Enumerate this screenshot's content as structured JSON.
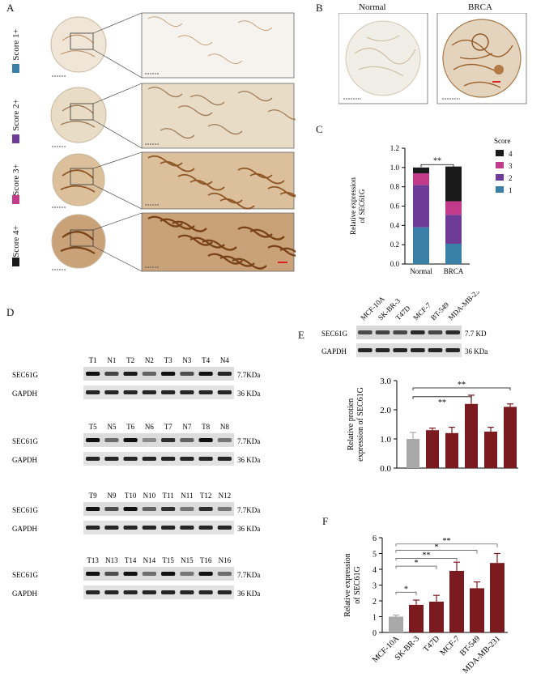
{
  "panelA": {
    "label": "A",
    "scores": [
      {
        "text": "Score 1+",
        "color": "#3a7fa6"
      },
      {
        "text": "Score 2+",
        "color": "#6e3b97"
      },
      {
        "text": "Score 3+",
        "color": "#c23a8a"
      },
      {
        "text": "Score 4+",
        "color": "#1a1a1a"
      }
    ]
  },
  "panelB": {
    "label": "B",
    "normal": "Normal",
    "brca": "BRCA"
  },
  "panelC": {
    "label": "C",
    "sig": "**",
    "legend_title": "Score",
    "ylabel": [
      "Relative expression",
      "of SEC61G"
    ],
    "chart_data": {
      "type": "bar",
      "stacked": true,
      "categories": [
        "Normal",
        "BRCA"
      ],
      "series": [
        {
          "name": "1",
          "color": "#3a7fa6",
          "values": [
            0.38,
            0.21
          ]
        },
        {
          "name": "2",
          "color": "#6e3b97",
          "values": [
            0.44,
            0.3
          ]
        },
        {
          "name": "3",
          "color": "#c23a8a",
          "values": [
            0.12,
            0.14
          ]
        },
        {
          "name": "4",
          "color": "#1a1a1a",
          "values": [
            0.06,
            0.36
          ]
        }
      ],
      "ylim": [
        0,
        1.2
      ],
      "yticks": [
        "0.0",
        "0.2",
        "0.4",
        "0.6",
        "0.8",
        "1.0",
        "1.2"
      ]
    }
  },
  "panelD": {
    "label": "D",
    "row1": "SEC61G",
    "row2": "GAPDH",
    "kda1": "7.7KDa",
    "kda2": "36 KDa",
    "groups": [
      [
        "T1",
        "N1",
        "T2",
        "N2",
        "T3",
        "N3",
        "T4",
        "N4"
      ],
      [
        "T5",
        "N5",
        "T6",
        "N6",
        "T7",
        "N7",
        "T8",
        "N8"
      ],
      [
        "T9",
        "N9",
        "T10",
        "N10",
        "T11",
        "N11",
        "T12",
        "N12"
      ],
      [
        "T13",
        "N13",
        "T14",
        "N14",
        "T15",
        "N15",
        "T16",
        "N16"
      ]
    ]
  },
  "panelE": {
    "label": "E",
    "row1": "SEC61G",
    "row2": "GAPDH",
    "kda1": "7.7 KD",
    "kda2": "36 KDa",
    "ylabel": [
      "Relative protien",
      "expression  of SEC61G"
    ],
    "sig1": "**",
    "sig2": "**",
    "chart_data": {
      "type": "bar",
      "categories": [
        "MCF-10A",
        "SK-BR-3",
        "T47D",
        "MCF-7",
        "BT-549",
        "MDA-MB-231"
      ],
      "values": [
        1.0,
        1.3,
        1.2,
        2.2,
        1.25,
        2.1
      ],
      "errors": [
        0.22,
        0.07,
        0.2,
        0.3,
        0.15,
        0.1
      ],
      "colors": [
        "#a9a9a9",
        "#7b1a1f",
        "#7b1a1f",
        "#7b1a1f",
        "#7b1a1f",
        "#7b1a1f"
      ],
      "ylim": [
        0,
        3.0
      ],
      "yticks": [
        "0.0",
        "1.0",
        "2.0",
        "3.0"
      ]
    }
  },
  "panelF": {
    "label": "F",
    "ylabel": [
      "Relative expression",
      "of  SEC61G"
    ],
    "sigs": [
      "**",
      "*",
      "**",
      "*",
      "*"
    ],
    "chart_data": {
      "type": "bar",
      "categories": [
        "MCF-10A",
        "SK-BR-3",
        "T47D",
        "MCF-7",
        "BT-549",
        "MDA-MB-231"
      ],
      "values": [
        1.0,
        1.75,
        1.95,
        3.9,
        2.8,
        4.4
      ],
      "errors": [
        0.1,
        0.3,
        0.4,
        0.55,
        0.4,
        0.6
      ],
      "colors": [
        "#a9a9a9",
        "#7b1a1f",
        "#7b1a1f",
        "#7b1a1f",
        "#7b1a1f",
        "#7b1a1f"
      ],
      "ylim": [
        0,
        6
      ],
      "yticks": [
        "0",
        "1",
        "2",
        "3",
        "4",
        "5",
        "6"
      ]
    }
  }
}
